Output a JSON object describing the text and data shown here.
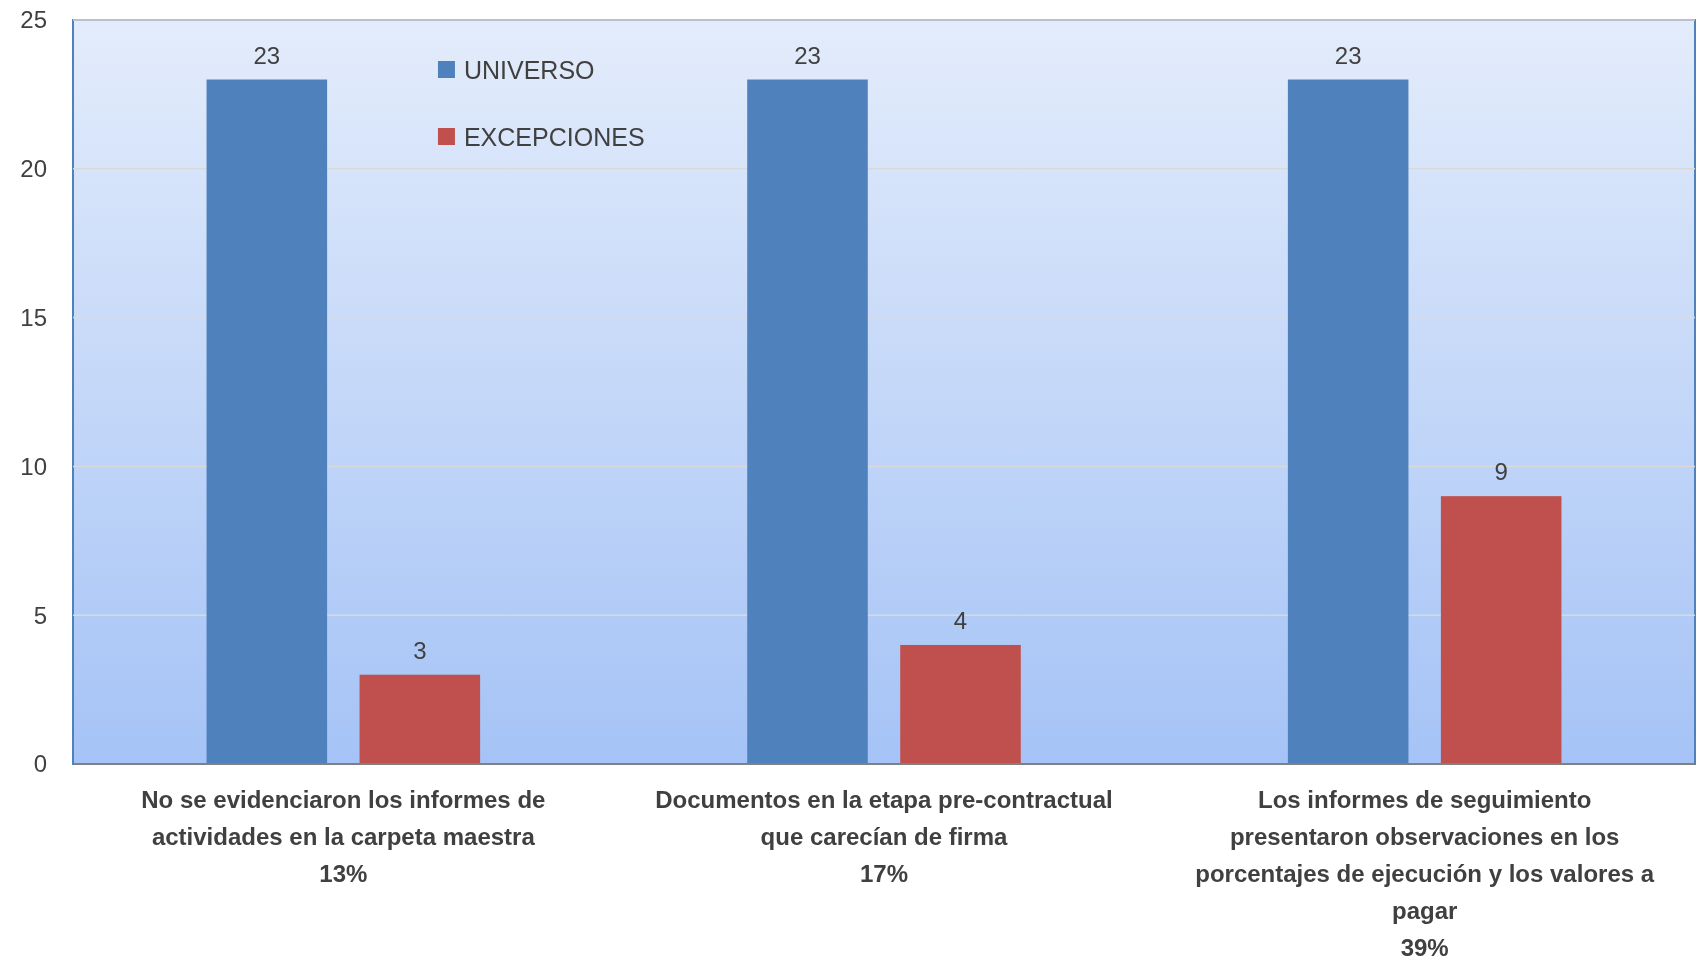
{
  "chart_data": {
    "type": "bar",
    "categories": [
      "No se evidenciaron los informes de\nactividades en la carpeta maestra\n13%",
      "Documentos en la etapa pre-contractual\nque carecían de firma\n17%",
      "Los informes de seguimiento\npresentaron observaciones en los\nporcentajes de ejecución y los valores a\npagar\n39%"
    ],
    "series": [
      {
        "name": "UNIVERSO",
        "color": "#4f81bd",
        "values": [
          23,
          23,
          23
        ]
      },
      {
        "name": "EXCEPCIONES",
        "color": "#c0504d",
        "values": [
          3,
          4,
          9
        ]
      }
    ],
    "ylim": [
      0,
      25
    ],
    "yticks": [
      0,
      5,
      10,
      15,
      20,
      25
    ],
    "grid": "y",
    "legend": "top left",
    "data_labels": true
  }
}
